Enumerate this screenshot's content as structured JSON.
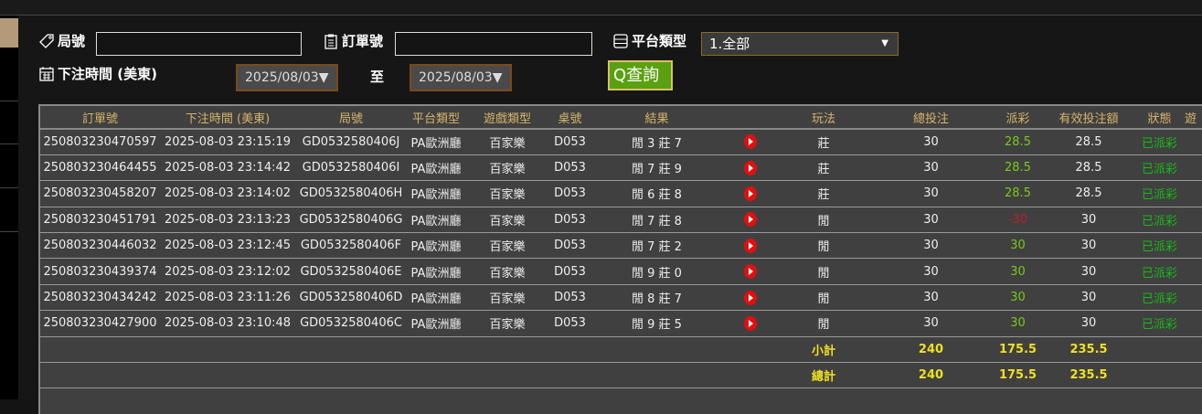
{
  "filters": {
    "round_label": "局號",
    "round_value": "",
    "order_label": "訂單號",
    "order_value": "",
    "platform_label": "平台類型",
    "platform_value": "1.全部",
    "time_label": "下注時間 (美東)",
    "date_from": "2025/08/03▼",
    "to_label": "至",
    "date_to": "2025/08/03▼",
    "search_label": "查詢"
  },
  "table": {
    "headers": [
      "訂單號",
      "下注時間 (美東)",
      "局號",
      "平台類型",
      "遊戲類型",
      "桌號",
      "結果",
      "",
      "玩法",
      "總投注",
      "派彩",
      "有效投注額",
      "狀態",
      "遊"
    ],
    "rows": [
      [
        "250803230470597",
        "2025-08-03 23:15:19",
        "GD0532580406J",
        "PA歐洲廳",
        "百家樂",
        "D053",
        "閒 3 莊 7",
        "",
        "莊",
        "30",
        "28.5",
        "28.5",
        "已派彩"
      ],
      [
        "250803230464455",
        "2025-08-03 23:14:42",
        "GD0532580406I",
        "PA歐洲廳",
        "百家樂",
        "D053",
        "閒 7 莊 9",
        "",
        "莊",
        "30",
        "28.5",
        "28.5",
        "已派彩"
      ],
      [
        "250803230458207",
        "2025-08-03 23:14:02",
        "GD0532580406H",
        "PA歐洲廳",
        "百家樂",
        "D053",
        "閒 6 莊 8",
        "",
        "莊",
        "30",
        "28.5",
        "28.5",
        "已派彩"
      ],
      [
        "250803230451791",
        "2025-08-03 23:13:23",
        "GD0532580406G",
        "PA歐洲廳",
        "百家樂",
        "D053",
        "閒 7 莊 8",
        "",
        "閒",
        "30",
        "-30",
        "30",
        "已派彩"
      ],
      [
        "250803230446032",
        "2025-08-03 23:12:45",
        "GD0532580406F",
        "PA歐洲廳",
        "百家樂",
        "D053",
        "閒 7 莊 2",
        "",
        "閒",
        "30",
        "30",
        "30",
        "已派彩"
      ],
      [
        "250803230439374",
        "2025-08-03 23:12:02",
        "GD0532580406E",
        "PA歐洲廳",
        "百家樂",
        "D053",
        "閒 9 莊 0",
        "",
        "閒",
        "30",
        "30",
        "30",
        "已派彩"
      ],
      [
        "250803230434242",
        "2025-08-03 23:11:26",
        "GD0532580406D",
        "PA歐洲廳",
        "百家樂",
        "D053",
        "閒 8 莊 7",
        "",
        "閒",
        "30",
        "30",
        "30",
        "已派彩"
      ],
      [
        "250803230427900",
        "2025-08-03 23:10:48",
        "GD0532580406C",
        "PA歐洲廳",
        "百家樂",
        "D053",
        "閒 9 莊 5",
        "",
        "閒",
        "30",
        "30",
        "30",
        "已派彩"
      ]
    ],
    "subtotal": {
      "label": "小計",
      "total_bet": "240",
      "payout": "175.5",
      "valid_bet": "235.5"
    },
    "total": {
      "label": "總計",
      "total_bet": "240",
      "payout": "175.5",
      "valid_bet": "235.5"
    }
  },
  "colors": {
    "header_text": "#d6b46a",
    "win": "#7ac81a",
    "loss": "#c02030",
    "status": "#18b818",
    "totals": "#f0e020"
  }
}
